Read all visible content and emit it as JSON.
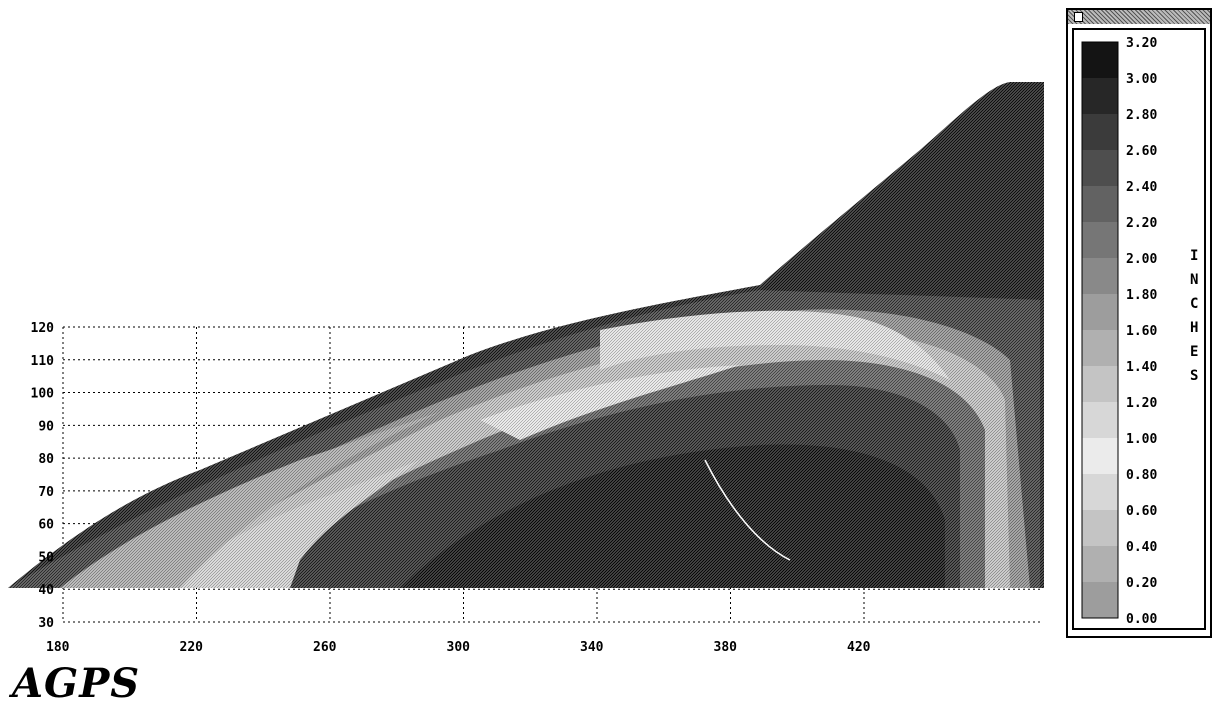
{
  "chart_data": {
    "type": "heatmap",
    "title": "",
    "xlabel": "",
    "ylabel": "",
    "x_ticks": [
      "180",
      "220",
      "260",
      "300",
      "340",
      "380",
      "420"
    ],
    "y_ticks": [
      "30",
      "40",
      "50",
      "60",
      "70",
      "80",
      "90",
      "100",
      "110",
      "120"
    ],
    "xlim": [
      180,
      420
    ],
    "ylim": [
      30,
      120
    ],
    "grid": true,
    "grid_style": "dotted",
    "colorbar": {
      "label": "INCHES",
      "levels": [
        "3.20",
        "3.00",
        "2.80",
        "2.60",
        "2.40",
        "2.20",
        "2.00",
        "1.80",
        "1.60",
        "1.40",
        "1.20",
        "1.00",
        "0.80",
        "0.60",
        "0.40",
        "0.20",
        "0.00"
      ],
      "min": 0.0,
      "max": 3.2,
      "colormap": "grayscale-banded (0 black, ~0.8-1.0 light, 3.2 black)"
    },
    "regions": [
      {
        "description": "outer leading-edge band",
        "value_range": [
          0.0,
          0.4
        ]
      },
      {
        "description": "diagonal band lower-left",
        "value_range": [
          1.0,
          1.6
        ]
      },
      {
        "description": "main diagonal trough",
        "value_range": [
          2.6,
          3.2
        ]
      },
      {
        "description": "upper diagonal band",
        "value_range": [
          1.0,
          1.4
        ]
      },
      {
        "description": "outboard tip region",
        "value_range": [
          3.0,
          3.2
        ]
      },
      {
        "description": "aft inboard pocket",
        "value_range": [
          3.0,
          3.2
        ]
      }
    ]
  },
  "footer": {
    "label": "AGPS"
  },
  "legend_window": {
    "units_label": [
      "I",
      "N",
      "C",
      "H",
      "E",
      "S"
    ]
  }
}
